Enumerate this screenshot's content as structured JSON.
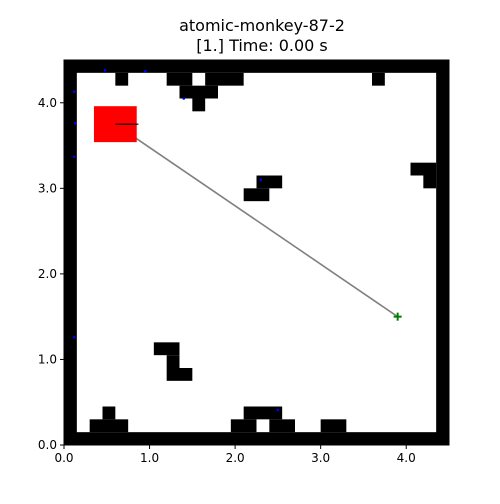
{
  "title": {
    "line1": "atomic-monkey-87-2",
    "line2": "[1.] Time: 0.00 s"
  },
  "chart_data": {
    "type": "scatter",
    "xlim": [
      0,
      4.5
    ],
    "ylim": [
      0,
      4.5
    ],
    "xticks": [
      0.0,
      1.0,
      2.0,
      3.0,
      4.0
    ],
    "yticks": [
      0.0,
      1.0,
      2.0,
      3.0,
      4.0
    ],
    "xtick_labels": [
      "0.0",
      "1.0",
      "2.0",
      "3.0",
      "4.0"
    ],
    "ytick_labels": [
      "0.0",
      "1.0",
      "2.0",
      "3.0",
      "4.0"
    ],
    "grid": false,
    "colors": {
      "obstacle": "#000000",
      "agent": "#ff0000",
      "heading": "#000000",
      "path": "#808080",
      "goal": "#008000",
      "sensor_dots": "#0000ff"
    },
    "obstacles": [
      [
        0.0,
        0.0,
        4.5,
        0.15
      ],
      [
        0.0,
        4.35,
        4.5,
        0.15
      ],
      [
        0.0,
        0.0,
        0.15,
        4.5
      ],
      [
        4.35,
        0.0,
        0.15,
        4.5
      ],
      [
        0.6,
        4.2,
        0.15,
        0.15
      ],
      [
        1.2,
        4.2,
        0.3,
        0.15
      ],
      [
        1.65,
        4.2,
        0.45,
        0.15
      ],
      [
        3.6,
        4.2,
        0.15,
        0.15
      ],
      [
        1.35,
        4.05,
        0.45,
        0.15
      ],
      [
        1.5,
        3.9,
        0.15,
        0.15
      ],
      [
        4.05,
        3.15,
        0.3,
        0.15
      ],
      [
        4.2,
        3.0,
        0.15,
        0.15
      ],
      [
        2.25,
        3.0,
        0.3,
        0.15
      ],
      [
        2.1,
        2.85,
        0.3,
        0.15
      ],
      [
        1.05,
        1.05,
        0.3,
        0.15
      ],
      [
        1.2,
        0.9,
        0.15,
        0.15
      ],
      [
        1.2,
        0.75,
        0.3,
        0.15
      ],
      [
        0.45,
        0.3,
        0.15,
        0.15
      ],
      [
        0.3,
        0.15,
        0.45,
        0.15
      ],
      [
        2.1,
        0.3,
        0.45,
        0.15
      ],
      [
        1.95,
        0.15,
        0.3,
        0.15
      ],
      [
        2.4,
        0.15,
        0.3,
        0.15
      ],
      [
        3.0,
        0.15,
        0.3,
        0.15
      ]
    ],
    "agent": {
      "x": 0.6,
      "y": 3.75,
      "width": 0.5,
      "height": 0.42,
      "heading_dx": 0.27
    },
    "path": [
      [
        0.6,
        3.75
      ],
      [
        3.9,
        1.5
      ]
    ],
    "goal": {
      "x": 3.9,
      "y": 1.5
    },
    "sensor_dots": [
      [
        0.48,
        4.38
      ],
      [
        0.95,
        4.37
      ],
      [
        0.12,
        4.13
      ],
      [
        0.13,
        3.76
      ],
      [
        0.12,
        3.37
      ],
      [
        1.4,
        4.05
      ],
      [
        2.3,
        3.1
      ],
      [
        0.12,
        1.26
      ],
      [
        2.5,
        0.41
      ]
    ]
  }
}
